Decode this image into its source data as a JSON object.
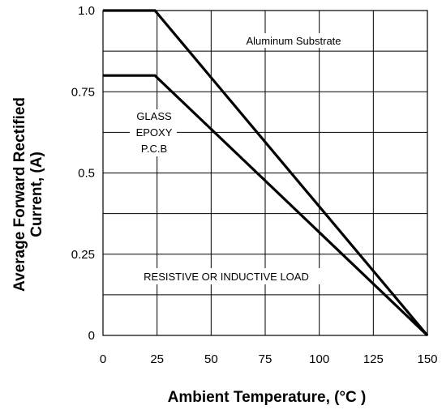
{
  "chart_data": {
    "type": "line",
    "xlabel": "Ambient  Temperature, (°C )",
    "ylabel_lines": [
      "Average Forward Rectified",
      "Current, (A)"
    ],
    "xlim": [
      0,
      150
    ],
    "ylim": [
      0,
      1.0
    ],
    "x_ticks": [
      0,
      25,
      50,
      75,
      100,
      125,
      150
    ],
    "x_tick_labels": [
      "0",
      "25",
      "50",
      "75",
      "100",
      "125",
      "150"
    ],
    "y_ticks": [
      0,
      0.25,
      0.5,
      0.75,
      1.0
    ],
    "y_tick_labels": [
      "0",
      "0.25",
      "0.5",
      "0.75",
      "1.0"
    ],
    "x_grid": [
      0,
      25,
      50,
      75,
      100,
      125,
      150
    ],
    "y_grid": [
      0,
      0.125,
      0.25,
      0.375,
      0.5,
      0.625,
      0.75,
      0.875,
      1.0
    ],
    "grid": true,
    "series": [
      {
        "name": "Aluminum Substrate",
        "x": [
          0,
          24,
          150
        ],
        "y": [
          1.0,
          1.0,
          0
        ]
      },
      {
        "name": "GLASS EPOXY P.C.B",
        "x": [
          0,
          24,
          150
        ],
        "y": [
          0.8,
          0.8,
          0
        ]
      }
    ],
    "annotations": {
      "aluminum": "Aluminum Substrate",
      "glass_lines": [
        "GLASS",
        "EPOXY",
        "P.C.B"
      ],
      "load": "RESISTIVE OR INDUCTIVE LOAD"
    }
  }
}
